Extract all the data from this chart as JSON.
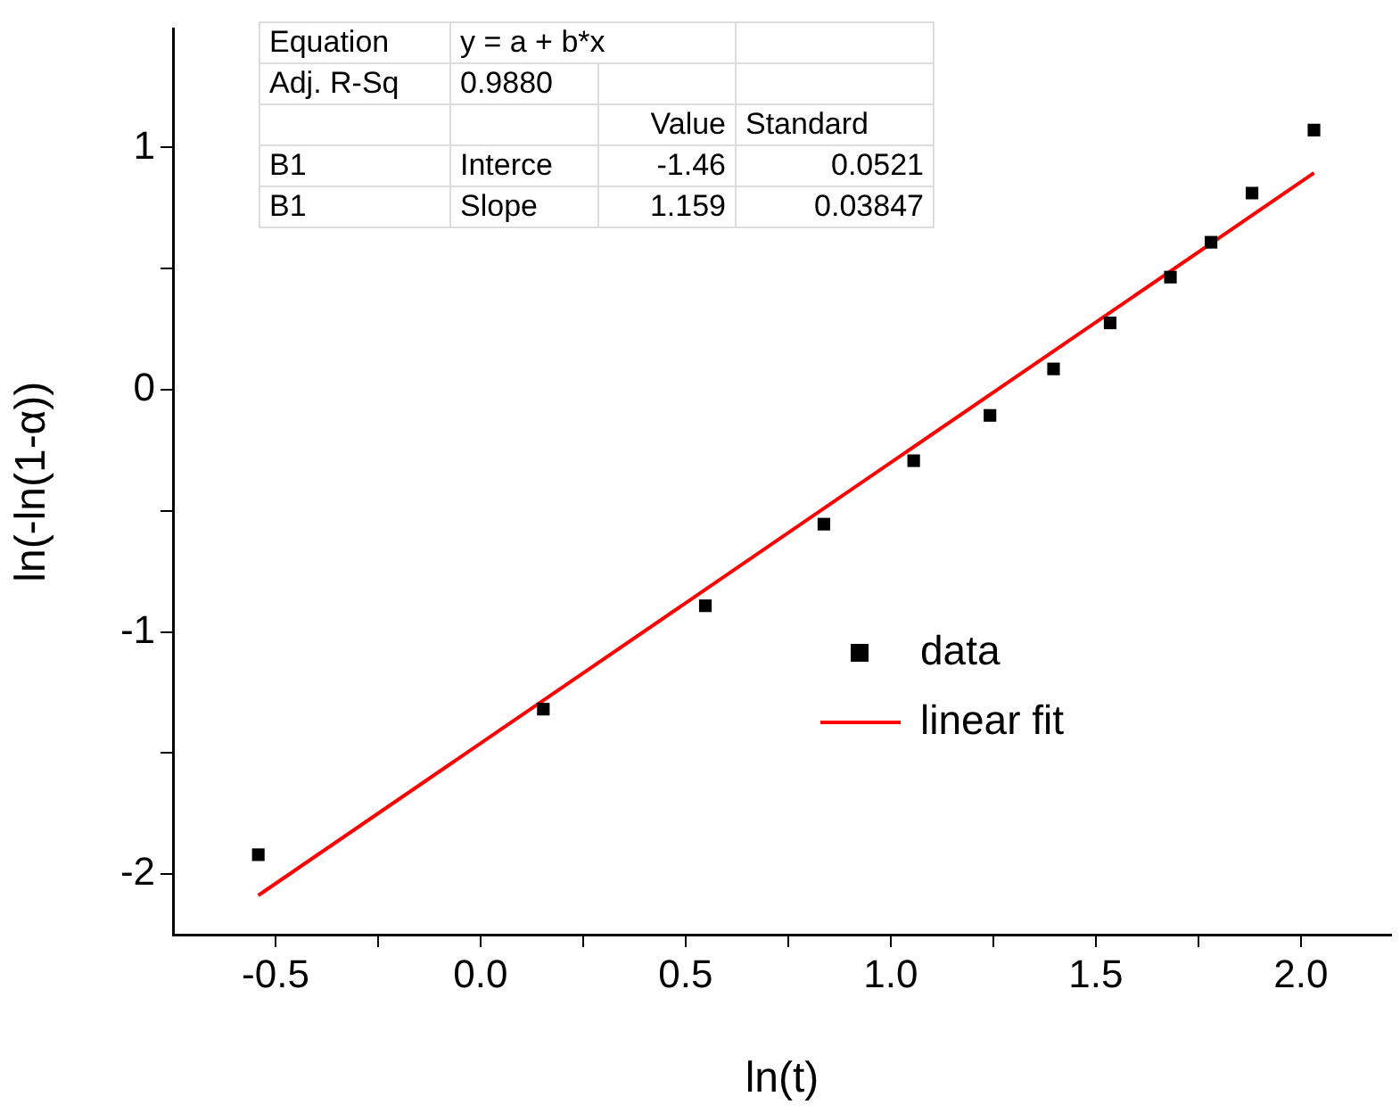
{
  "chart_data": {
    "type": "scatter",
    "xlabel": "ln(t)",
    "ylabel": "ln(-ln(1-α))",
    "xlim": [
      -0.75,
      2.22
    ],
    "xticks": [
      -0.5,
      {
        "value": -0.25,
        "label": null
      },
      "0.0",
      {
        "value": 0.25,
        "label": null
      },
      0.5,
      {
        "value": 0.75,
        "label": null
      },
      "1.0",
      {
        "value": 1.25,
        "label": null
      },
      1.5,
      {
        "value": 1.75,
        "label": null
      },
      "2.0"
    ],
    "ylim": [
      -2.25,
      1.49
    ],
    "yticks": [
      -2,
      {
        "value": -1.5,
        "label": null
      },
      -1,
      {
        "value": -0.5,
        "label": null
      },
      0,
      {
        "value": 0.5,
        "label": null
      },
      1
    ],
    "series": [
      {
        "name": "data",
        "color": "#000000",
        "marker": "square",
        "x": [
          -0.542,
          0.153,
          0.548,
          0.837,
          1.056,
          1.242,
          1.397,
          1.535,
          1.682,
          1.781,
          1.881,
          2.032
        ],
        "values": [
          -1.92,
          -1.319,
          -0.892,
          -0.555,
          -0.293,
          -0.106,
          0.086,
          0.276,
          0.465,
          0.609,
          0.812,
          1.072
        ]
      },
      {
        "name": "linear fit",
        "type": "line",
        "color": "#ff0000",
        "marker": "none",
        "line_style": "solid",
        "x": [
          -0.542,
          2.032
        ],
        "values": [
          -2.088,
          0.895
        ]
      }
    ],
    "annotations": [
      "Equation",
      "y = a + b*x",
      "Adj. R-Sq",
      "0.9880",
      "Value",
      "Standard",
      "B1",
      "Interce",
      "-1.46",
      "0.0521",
      "B1",
      "Slope",
      "1.159",
      "0.03847"
    ],
    "grid": false,
    "legend": "bottom right"
  }
}
